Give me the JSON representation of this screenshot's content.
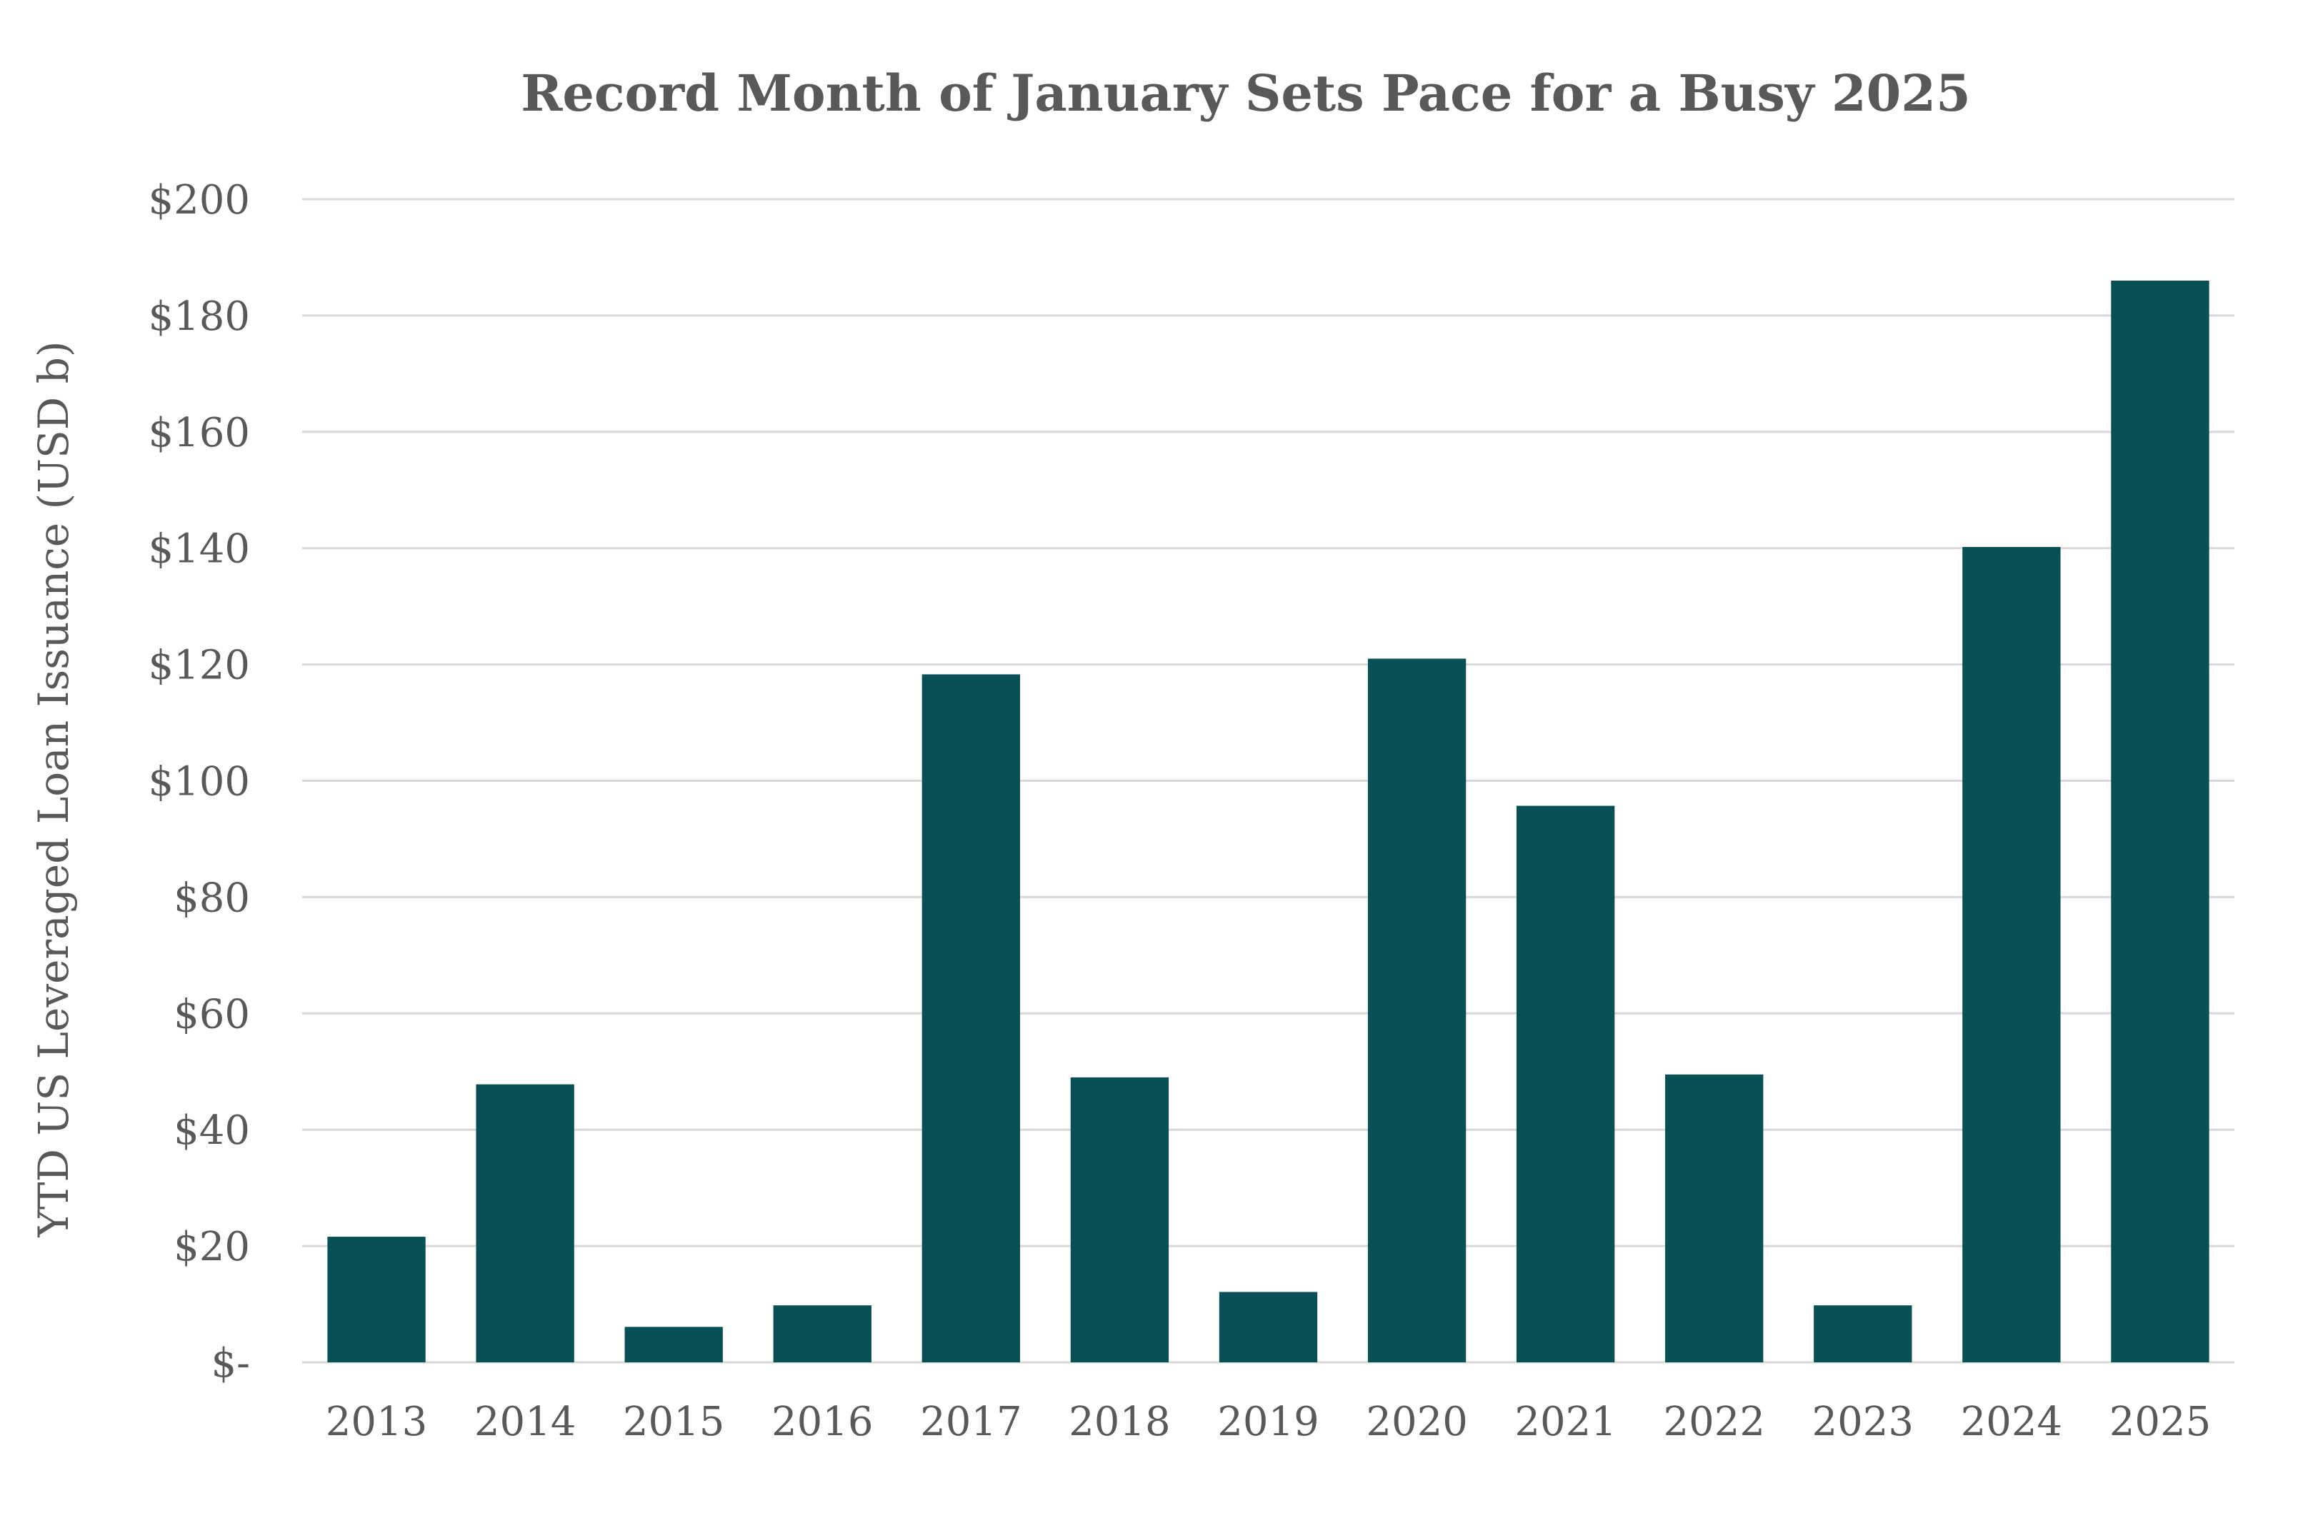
{
  "chart_data": {
    "type": "bar",
    "title": "Record Month of January Sets Pace for a Busy 2025",
    "ylabel": "YTD US Leveraged Loan Issuance (USD b)",
    "xlabel": "",
    "categories": [
      "2013",
      "2014",
      "2015",
      "2016",
      "2017",
      "2018",
      "2019",
      "2020",
      "2021",
      "2022",
      "2023",
      "2024",
      "2025"
    ],
    "values": [
      21.6,
      47.8,
      6.1,
      9.8,
      118.3,
      49.0,
      12.1,
      121.0,
      95.7,
      49.5,
      9.8,
      140.2,
      186.0
    ],
    "ylim": [
      0,
      200
    ],
    "yticks": [
      0,
      20,
      40,
      60,
      80,
      100,
      120,
      140,
      160,
      180,
      200
    ],
    "ytick_labels": [
      "$-",
      "$20",
      "$40",
      "$60",
      "$80",
      "$100",
      "$120",
      "$140",
      "$160",
      "$180",
      "$200"
    ],
    "grid": true,
    "legend": "none",
    "bar_color": "#075056",
    "grid_color": "#d9d9d9",
    "text_color": "#595959"
  }
}
